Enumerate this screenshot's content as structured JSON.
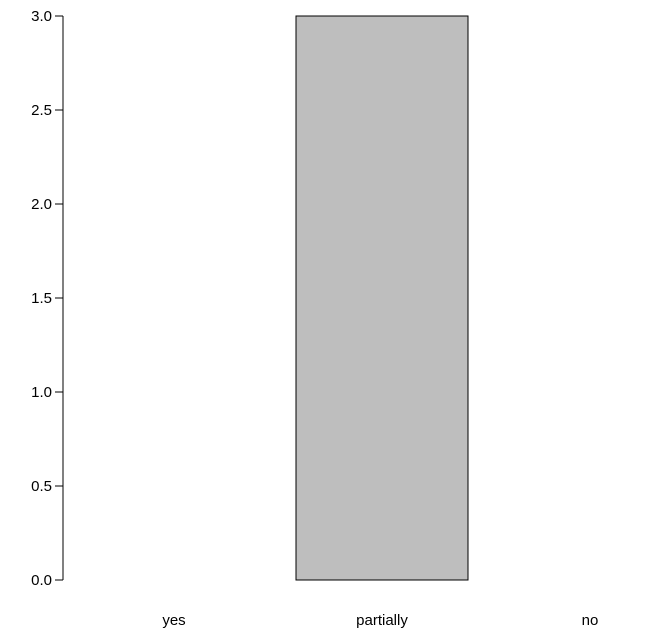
{
  "chart_data": {
    "type": "bar",
    "title": "",
    "xlabel": "",
    "ylabel": "",
    "categories": [
      "yes",
      "partially",
      "no"
    ],
    "values": [
      0,
      3,
      0
    ],
    "ylim": [
      0,
      3
    ],
    "yticks": [
      "0.0",
      "0.5",
      "1.0",
      "1.5",
      "2.0",
      "2.5",
      "3.0"
    ],
    "bar_color": "#bebebe",
    "border_color": "#000000",
    "grid": false,
    "legend": "none"
  }
}
